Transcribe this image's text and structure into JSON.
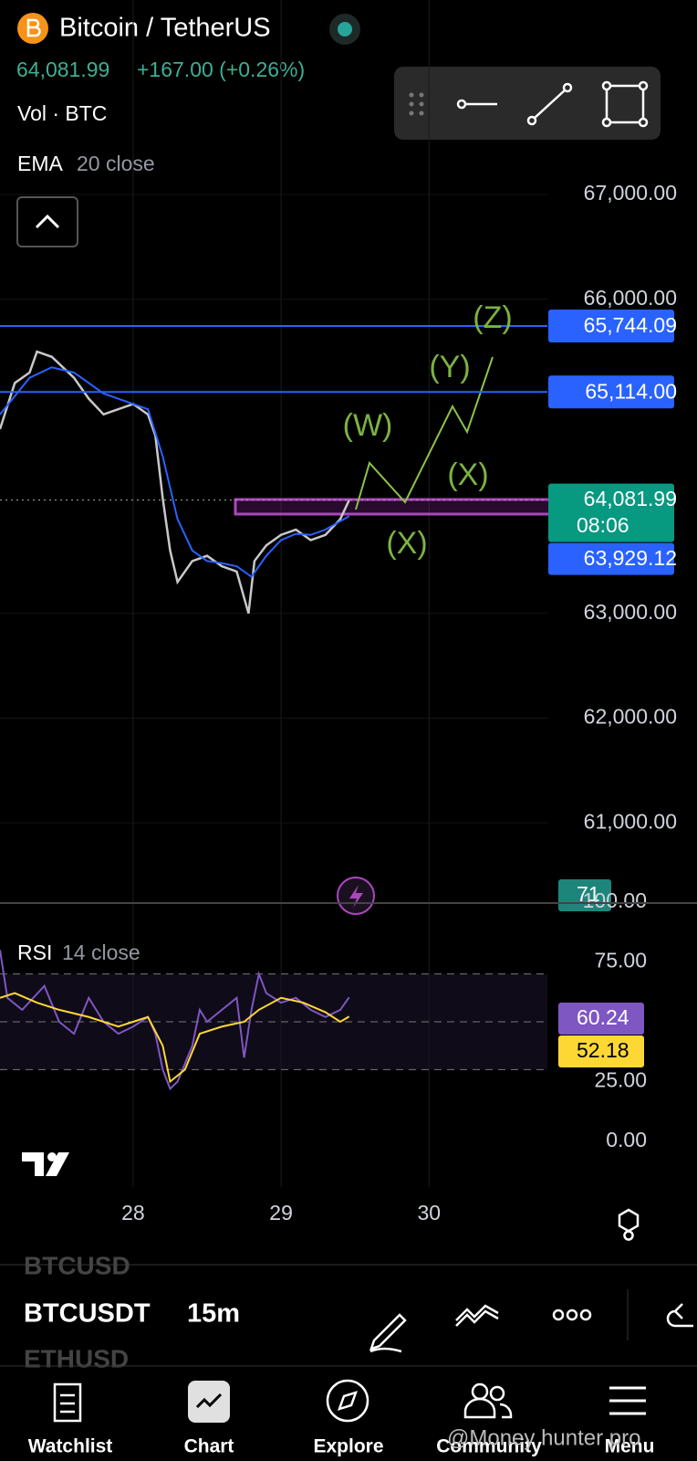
{
  "header": {
    "title": "Bitcoin / TetherUS",
    "price": "64,081.99",
    "change": "+167.00 (+0.26%)",
    "volume": "Vol · BTC",
    "ema_name": "EMA",
    "ema_params": "20 close"
  },
  "chart_data": {
    "type": "line",
    "xlim": [
      27.1,
      30.8
    ],
    "ylim": [
      60243,
      68857
    ],
    "xticks": [
      28,
      29,
      30
    ],
    "yticks": [
      {
        "value": 67000,
        "label": "67,000.00"
      },
      {
        "value": 66000,
        "label": "66,000.00"
      },
      {
        "value": 63000,
        "label": "63,000.00"
      },
      {
        "value": 62000,
        "label": "62,000.00"
      },
      {
        "value": 61000,
        "label": "61,000.00"
      }
    ],
    "series": [
      {
        "color": "#c8c8c8",
        "x": [
          27.1,
          27.2,
          27.3,
          27.35,
          27.45,
          27.6,
          27.7,
          27.8,
          27.9,
          28.0,
          28.1,
          28.15,
          28.2,
          28.25,
          28.3,
          28.4,
          28.5,
          28.6,
          28.7,
          28.78,
          28.82,
          28.9,
          29.0,
          29.1,
          29.2,
          29.3,
          29.4,
          29.46
        ],
        "values": [
          64760,
          65200,
          65300,
          65500,
          65450,
          65250,
          65050,
          64900,
          64950,
          65000,
          64900,
          64700,
          64100,
          63600,
          63300,
          63500,
          63550,
          63450,
          63400,
          63000,
          63500,
          63650,
          63750,
          63800,
          63700,
          63750,
          63900,
          64081.99
        ]
      },
      {
        "color": "#2962ff",
        "x": [
          27.1,
          27.3,
          27.45,
          27.6,
          27.8,
          28.0,
          28.1,
          28.2,
          28.3,
          28.4,
          28.5,
          28.6,
          28.7,
          28.8,
          28.9,
          29.0,
          29.1,
          29.2,
          29.3,
          29.46
        ],
        "values": [
          64900,
          65250,
          65350,
          65300,
          65100,
          65000,
          64950,
          64500,
          63900,
          63600,
          63500,
          63480,
          63450,
          63350,
          63550,
          63700,
          63760,
          63750,
          63800,
          63929.12
        ]
      }
    ],
    "price_lines": [
      {
        "value": 65744.09,
        "label": "65,744.09",
        "color": "#2962ff"
      },
      {
        "value": 65114,
        "label": "65,114.00",
        "color": "#2962ff"
      }
    ],
    "last_price": {
      "value": 64081.99,
      "label": "64,081.99",
      "countdown": "08:06",
      "color": "#089981"
    },
    "ema_last": {
      "value": 63929.12,
      "label": "63,929.12",
      "color": "#2962ff"
    },
    "annotations": [
      "(Z)",
      "(Y)",
      "(W)",
      "(X)",
      "(X)"
    ],
    "volume_badge": "71"
  },
  "rsi": {
    "title": "RSI",
    "params": "14 close",
    "ylim": [
      0,
      100
    ],
    "yticks": [
      {
        "value": 100,
        "label": "100.00"
      },
      {
        "value": 75,
        "label": "75.00"
      },
      {
        "value": 25,
        "label": "25.00"
      },
      {
        "value": 0,
        "label": "0.00"
      }
    ],
    "levels": [
      70,
      50,
      30
    ],
    "series": [
      {
        "color": "#7e57c2",
        "x": [
          27.1,
          27.15,
          27.25,
          27.4,
          27.5,
          27.6,
          27.7,
          27.8,
          27.9,
          28.0,
          28.1,
          28.15,
          28.2,
          28.25,
          28.3,
          28.4,
          28.45,
          28.5,
          28.6,
          28.7,
          28.75,
          28.8,
          28.85,
          28.9,
          29.0,
          29.1,
          29.2,
          29.3,
          29.4,
          29.46
        ],
        "values": [
          80,
          60,
          55,
          65,
          50,
          45,
          60,
          50,
          45,
          48,
          52,
          45,
          30,
          22,
          25,
          40,
          55,
          50,
          55,
          60,
          35,
          55,
          70,
          62,
          58,
          60,
          55,
          52,
          55,
          60.24
        ],
        "label": "60.24"
      },
      {
        "color": "#fdd835",
        "x": [
          27.1,
          27.2,
          27.35,
          27.5,
          27.7,
          27.9,
          28.0,
          28.1,
          28.2,
          28.25,
          28.35,
          28.45,
          28.6,
          28.75,
          28.85,
          29.0,
          29.15,
          29.3,
          29.4,
          29.46
        ],
        "values": [
          60,
          62,
          58,
          55,
          52,
          48,
          50,
          52,
          40,
          25,
          30,
          45,
          48,
          50,
          55,
          60,
          58,
          54,
          50,
          52.18
        ],
        "label": "52.18"
      }
    ]
  },
  "symbol_bar": {
    "prev": "BTCUSD",
    "current": "BTCUSDT",
    "interval": "15m",
    "next": "ETHUSD"
  },
  "nav": [
    "Watchlist",
    "Chart",
    "Explore",
    "Community",
    "Menu"
  ],
  "watermark": "@Money hunter pro"
}
